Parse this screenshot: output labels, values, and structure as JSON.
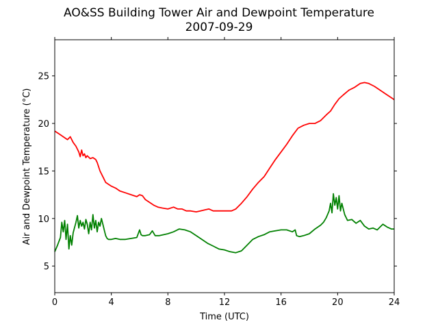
{
  "chart_data": {
    "type": "line",
    "title": "AO&SS Building Tower Air and Dewpoint Temperature",
    "subtitle": "2007-09-29",
    "xlabel": "Time (UTC)",
    "ylabel": "Air and Dewpoint Temperature (°C)",
    "xlim": [
      0,
      24
    ],
    "ylim": [
      2.2,
      28.8
    ],
    "xticks": [
      0,
      4,
      8,
      12,
      16,
      20,
      24
    ],
    "yticks": [
      5,
      10,
      15,
      20,
      25
    ],
    "grid": false,
    "series": [
      {
        "color": "#ff0000",
        "x": [
          0,
          0.3,
          0.6,
          0.9,
          1.1,
          1.3,
          1.5,
          1.7,
          1.8,
          1.9,
          2.0,
          2.1,
          2.2,
          2.3,
          2.5,
          2.7,
          2.9,
          3.0,
          3.2,
          3.4,
          3.6,
          3.8,
          4.0,
          4.3,
          4.6,
          5.0,
          5.4,
          5.8,
          6.0,
          6.2,
          6.4,
          6.7,
          7.0,
          7.3,
          7.6,
          8.0,
          8.4,
          8.7,
          9.0,
          9.3,
          9.6,
          10.0,
          10.3,
          10.6,
          10.9,
          11.2,
          11.5,
          12.0,
          12.5,
          12.8,
          13.2,
          13.6,
          14.0,
          14.4,
          14.8,
          15.2,
          15.6,
          16.0,
          16.4,
          16.8,
          17.2,
          17.6,
          18.0,
          18.4,
          18.8,
          19.2,
          19.5,
          19.8,
          20.1,
          20.4,
          20.8,
          21.2,
          21.6,
          21.9,
          22.2,
          22.6,
          23.0,
          23.4,
          23.8,
          24.0
        ],
        "values": [
          19.2,
          18.9,
          18.6,
          18.3,
          18.6,
          18.0,
          17.6,
          17.0,
          16.5,
          17.2,
          16.6,
          16.8,
          16.4,
          16.6,
          16.3,
          16.4,
          16.2,
          15.9,
          15.0,
          14.4,
          13.8,
          13.6,
          13.4,
          13.2,
          12.9,
          12.7,
          12.5,
          12.3,
          12.5,
          12.4,
          12.0,
          11.7,
          11.4,
          11.2,
          11.1,
          11.0,
          11.2,
          11.0,
          11.0,
          10.8,
          10.8,
          10.7,
          10.8,
          10.9,
          11.0,
          10.8,
          10.8,
          10.8,
          10.8,
          11.0,
          11.6,
          12.3,
          13.1,
          13.8,
          14.4,
          15.3,
          16.2,
          17.0,
          17.8,
          18.7,
          19.5,
          19.8,
          20.0,
          20.0,
          20.3,
          20.9,
          21.3,
          22.0,
          22.6,
          23.0,
          23.5,
          23.8,
          24.2,
          24.3,
          24.2,
          23.9,
          23.5,
          23.1,
          22.7,
          22.5
        ]
      },
      {
        "color": "#008000",
        "x": [
          0,
          0.2,
          0.4,
          0.5,
          0.6,
          0.7,
          0.8,
          0.9,
          1.0,
          1.1,
          1.2,
          1.3,
          1.5,
          1.6,
          1.7,
          1.8,
          1.9,
          2.0,
          2.1,
          2.2,
          2.3,
          2.4,
          2.5,
          2.6,
          2.7,
          2.8,
          2.9,
          3.0,
          3.1,
          3.2,
          3.3,
          3.4,
          3.5,
          3.6,
          3.7,
          3.8,
          4.0,
          4.3,
          4.6,
          5.0,
          5.4,
          5.8,
          6.0,
          6.1,
          6.2,
          6.4,
          6.7,
          6.9,
          7.1,
          7.4,
          7.7,
          8.0,
          8.4,
          8.8,
          9.2,
          9.6,
          10.0,
          10.4,
          10.8,
          11.2,
          11.6,
          12.0,
          12.4,
          12.8,
          13.2,
          13.6,
          14.0,
          14.4,
          14.8,
          15.2,
          15.6,
          16.0,
          16.4,
          16.8,
          17.0,
          17.1,
          17.3,
          17.6,
          18.0,
          18.4,
          18.8,
          19.0,
          19.2,
          19.4,
          19.5,
          19.6,
          19.7,
          19.8,
          19.9,
          20.0,
          20.1,
          20.2,
          20.3,
          20.5,
          20.7,
          21.0,
          21.3,
          21.6,
          21.9,
          22.2,
          22.5,
          22.8,
          23.0,
          23.2,
          23.5,
          23.8,
          24.0
        ],
        "values": [
          6.5,
          7.2,
          8.0,
          9.6,
          8.6,
          9.8,
          7.8,
          9.4,
          6.8,
          8.2,
          7.2,
          8.5,
          9.6,
          10.3,
          9.0,
          9.8,
          9.2,
          9.6,
          8.9,
          9.9,
          9.4,
          8.4,
          9.6,
          8.8,
          10.4,
          9.0,
          9.8,
          8.6,
          9.6,
          9.2,
          10.0,
          9.4,
          8.8,
          8.2,
          7.9,
          7.8,
          7.8,
          7.9,
          7.8,
          7.8,
          7.9,
          8.0,
          8.8,
          8.3,
          8.2,
          8.2,
          8.3,
          8.7,
          8.2,
          8.2,
          8.3,
          8.4,
          8.6,
          8.9,
          8.8,
          8.6,
          8.2,
          7.8,
          7.4,
          7.1,
          6.8,
          6.7,
          6.5,
          6.4,
          6.6,
          7.2,
          7.8,
          8.1,
          8.3,
          8.6,
          8.7,
          8.8,
          8.8,
          8.6,
          8.8,
          8.2,
          8.1,
          8.2,
          8.4,
          8.9,
          9.3,
          9.6,
          10.1,
          10.8,
          11.6,
          10.6,
          12.6,
          11.4,
          12.2,
          11.0,
          12.4,
          10.8,
          11.6,
          10.4,
          9.8,
          9.9,
          9.5,
          9.8,
          9.2,
          8.9,
          9.0,
          8.8,
          9.1,
          9.4,
          9.1,
          8.9,
          8.9
        ]
      }
    ]
  }
}
